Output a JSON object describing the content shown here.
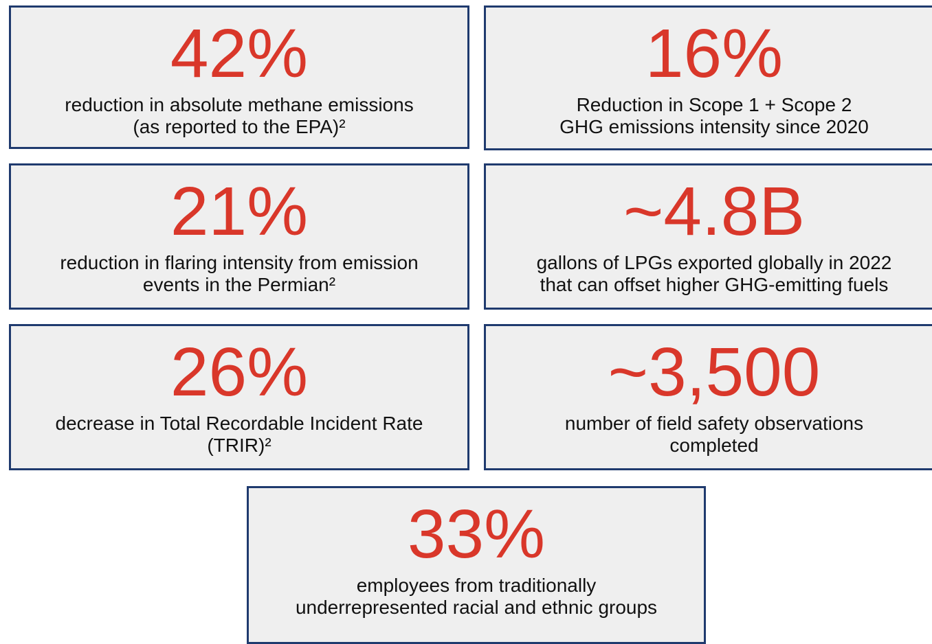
{
  "cards": [
    {
      "value": "42%",
      "lines": [
        "reduction in absolute methane emissions",
        "(as reported to the EPA)²"
      ]
    },
    {
      "value": "16%",
      "lines": [
        "Reduction in Scope 1 + Scope 2",
        "GHG emissions intensity since 2020"
      ]
    },
    {
      "value": "21%",
      "lines": [
        "reduction in flaring intensity from emission",
        "events in the Permian²"
      ]
    },
    {
      "value": "~4.8B",
      "lines": [
        "gallons of LPGs exported globally in 2022",
        "that can offset higher GHG-emitting fuels"
      ]
    },
    {
      "value": "26%",
      "lines": [
        "decrease in Total Recordable Incident Rate",
        "(TRIR)²"
      ]
    },
    {
      "value": "~3,500",
      "lines": [
        "number of field safety observations",
        "completed"
      ]
    },
    {
      "value": "33%",
      "lines": [
        "employees from traditionally",
        "underrepresented racial and ethnic groups"
      ]
    }
  ]
}
